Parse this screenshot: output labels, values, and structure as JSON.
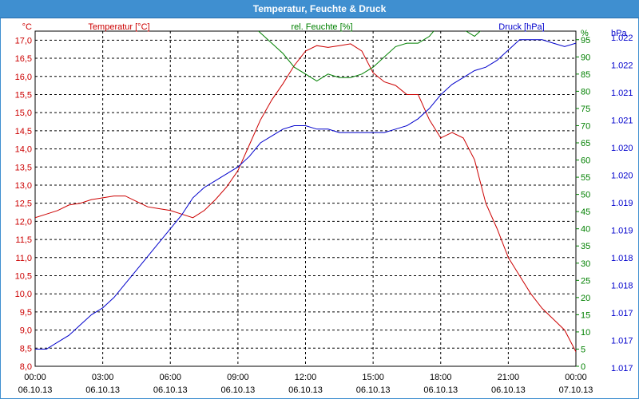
{
  "window": {
    "title": "Temperatur, Feuchte & Druck"
  },
  "colors": {
    "temperature": "#cc0000",
    "humidity": "#008000",
    "pressure": "#0000cc",
    "title_bar": "#3f8fd0",
    "grid": "#000000"
  },
  "chart_data": {
    "type": "line",
    "title": "Temperatur, Feuchte & Druck",
    "grid": true,
    "x_ticks": [
      {
        "time": "00:00",
        "date": "06.10.13"
      },
      {
        "time": "03:00",
        "date": "06.10.13"
      },
      {
        "time": "06:00",
        "date": "06.10.13"
      },
      {
        "time": "09:00",
        "date": "06.10.13"
      },
      {
        "time": "12:00",
        "date": "06.10.13"
      },
      {
        "time": "15:00",
        "date": "06.10.13"
      },
      {
        "time": "18:00",
        "date": "06.10.13"
      },
      {
        "time": "21:00",
        "date": "06.10.13"
      },
      {
        "time": "00:00",
        "date": "07.10.13"
      }
    ],
    "axes": {
      "temperature": {
        "label": "Temperatur [°C]",
        "unit": "°C",
        "ylim": [
          8.0,
          17.25
        ],
        "ticks": [
          "8,0",
          "8,5",
          "9,0",
          "9,5",
          "10,0",
          "10,5",
          "11,0",
          "11,5",
          "12,0",
          "12,5",
          "13,0",
          "13,5",
          "14,0",
          "14,5",
          "15,0",
          "15,5",
          "16,0",
          "16,5",
          "17,0"
        ]
      },
      "humidity": {
        "label": "rel. Feuchte [%]",
        "unit": "%",
        "ylim": [
          0,
          97.5
        ],
        "ticks": [
          "0",
          "5",
          "10",
          "15",
          "20",
          "25",
          "30",
          "35",
          "40",
          "45",
          "50",
          "55",
          "60",
          "65",
          "70",
          "75",
          "80",
          "85",
          "90",
          "95"
        ]
      },
      "pressure": {
        "label": "Druck [hPa]",
        "unit": "hPa",
        "ticks": [
          "1.017",
          "1.017",
          "1.017",
          "1.018",
          "1.018",
          "1.019",
          "1.019",
          "1.020",
          "1.020",
          "1.021",
          "1.021",
          "1.022",
          "1.022"
        ]
      }
    },
    "series": [
      {
        "name": "Temperatur [°C]",
        "axis": "temperature",
        "points": [
          [
            0,
            12.1
          ],
          [
            0.5,
            12.2
          ],
          [
            1,
            12.3
          ],
          [
            1.5,
            12.45
          ],
          [
            2,
            12.5
          ],
          [
            2.5,
            12.6
          ],
          [
            3,
            12.65
          ],
          [
            3.5,
            12.7
          ],
          [
            4,
            12.7
          ],
          [
            4.5,
            12.55
          ],
          [
            5,
            12.4
          ],
          [
            5.5,
            12.35
          ],
          [
            6,
            12.3
          ],
          [
            6.5,
            12.2
          ],
          [
            7,
            12.1
          ],
          [
            7.5,
            12.3
          ],
          [
            8,
            12.6
          ],
          [
            8.5,
            12.95
          ],
          [
            9,
            13.4
          ],
          [
            9.5,
            14.1
          ],
          [
            10,
            14.8
          ],
          [
            10.5,
            15.35
          ],
          [
            11,
            15.8
          ],
          [
            11.5,
            16.3
          ],
          [
            12,
            16.7
          ],
          [
            12.5,
            16.85
          ],
          [
            13,
            16.8
          ],
          [
            13.5,
            16.85
          ],
          [
            14,
            16.9
          ],
          [
            14.5,
            16.7
          ],
          [
            15,
            16.1
          ],
          [
            15.5,
            15.85
          ],
          [
            16,
            15.75
          ],
          [
            16.5,
            15.5
          ],
          [
            17,
            15.5
          ],
          [
            17.5,
            14.8
          ],
          [
            18,
            14.3
          ],
          [
            18.5,
            14.45
          ],
          [
            19,
            14.3
          ],
          [
            19.5,
            13.7
          ],
          [
            20,
            12.5
          ],
          [
            20.5,
            11.8
          ],
          [
            21,
            11.0
          ],
          [
            21.5,
            10.5
          ],
          [
            22,
            10.0
          ],
          [
            22.5,
            9.6
          ],
          [
            23,
            9.3
          ],
          [
            23.5,
            9.0
          ],
          [
            24,
            8.4
          ]
        ]
      },
      {
        "name": "rel. Feuchte [%]",
        "axis": "humidity",
        "points": [
          [
            9.5,
            100
          ],
          [
            10,
            97
          ],
          [
            10.5,
            94
          ],
          [
            11,
            91
          ],
          [
            11.5,
            87
          ],
          [
            12,
            85
          ],
          [
            12.5,
            83
          ],
          [
            13,
            85
          ],
          [
            13.5,
            84
          ],
          [
            14,
            84
          ],
          [
            14.5,
            85
          ],
          [
            15,
            87
          ],
          [
            15.5,
            90
          ],
          [
            16,
            93
          ],
          [
            16.5,
            94
          ],
          [
            17,
            94
          ],
          [
            17.5,
            96
          ],
          [
            18,
            100
          ],
          [
            19,
            98
          ],
          [
            19.5,
            96
          ],
          [
            20,
            99
          ],
          [
            20.5,
            100
          ]
        ]
      },
      {
        "name": "Druck [hPa]",
        "axis": "pressure",
        "points": [
          [
            0,
            5
          ],
          [
            0.5,
            5
          ],
          [
            1,
            7
          ],
          [
            1.5,
            9
          ],
          [
            2,
            12
          ],
          [
            2.5,
            15
          ],
          [
            3,
            17
          ],
          [
            3.5,
            20
          ],
          [
            4,
            24
          ],
          [
            4.5,
            28
          ],
          [
            5,
            32
          ],
          [
            5.5,
            36
          ],
          [
            6,
            40
          ],
          [
            6.5,
            44
          ],
          [
            7,
            49
          ],
          [
            7.5,
            52
          ],
          [
            8,
            54
          ],
          [
            8.5,
            56
          ],
          [
            9,
            58
          ],
          [
            9.5,
            61
          ],
          [
            10,
            65
          ],
          [
            10.5,
            67
          ],
          [
            11,
            69
          ],
          [
            11.5,
            70
          ],
          [
            12,
            70
          ],
          [
            12.5,
            69
          ],
          [
            13,
            69
          ],
          [
            13.5,
            68
          ],
          [
            14,
            68
          ],
          [
            14.5,
            68
          ],
          [
            15,
            68
          ],
          [
            15.5,
            68
          ],
          [
            16,
            69
          ],
          [
            16.5,
            70
          ],
          [
            17,
            72
          ],
          [
            17.5,
            75
          ],
          [
            18,
            79
          ],
          [
            18.5,
            82
          ],
          [
            19,
            84
          ],
          [
            19.5,
            86
          ],
          [
            20,
            87
          ],
          [
            20.5,
            89
          ],
          [
            21,
            92
          ],
          [
            21.5,
            95
          ],
          [
            22,
            95
          ],
          [
            22.5,
            95
          ],
          [
            23,
            94
          ],
          [
            23.5,
            93
          ],
          [
            24,
            94
          ]
        ]
      }
    ]
  }
}
